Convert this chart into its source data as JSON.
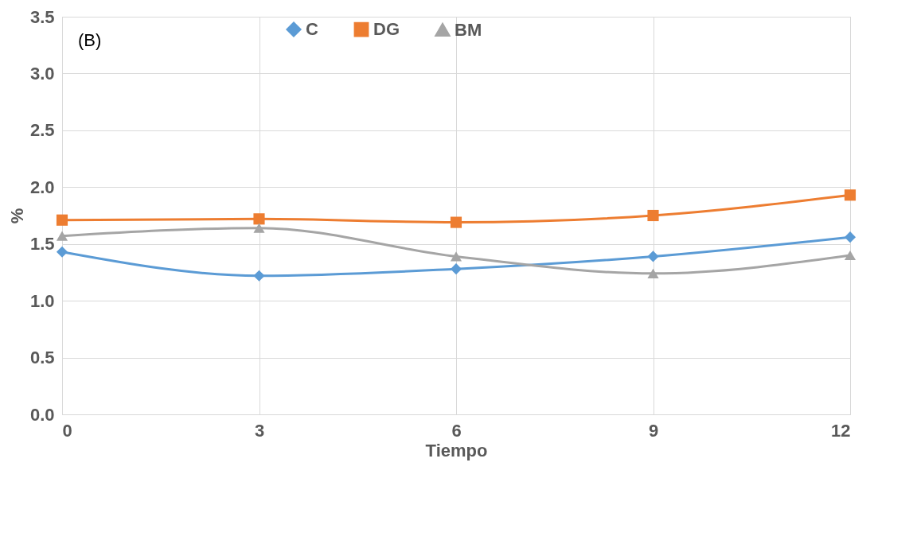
{
  "chart_data": {
    "type": "line",
    "xlabel": "Tiempo",
    "ylabel": "%",
    "annotations": [
      "(B)"
    ],
    "x": [
      0,
      3,
      6,
      9,
      12
    ],
    "series": [
      {
        "name": "C",
        "color": "#5b9bd5",
        "marker": "diamond",
        "values": [
          1.43,
          1.22,
          1.28,
          1.39,
          1.56
        ]
      },
      {
        "name": "DG",
        "color": "#ed7d31",
        "marker": "square",
        "values": [
          1.71,
          1.72,
          1.69,
          1.75,
          1.93
        ]
      },
      {
        "name": "BM",
        "color": "#a5a5a5",
        "marker": "triangle",
        "values": [
          1.57,
          1.64,
          1.39,
          1.24,
          1.4
        ]
      }
    ],
    "xlim": [
      0,
      12
    ],
    "xticks": [
      0,
      3,
      6,
      9,
      12
    ],
    "ylim": [
      0,
      3.5
    ],
    "yticks": [
      {
        "value": 0,
        "label": "0.0"
      },
      {
        "value": 0.5,
        "label": "0.5"
      },
      {
        "value": 1,
        "label": "1.0"
      },
      {
        "value": 1.5,
        "label": "1.5"
      },
      {
        "value": 2,
        "label": "2.0"
      },
      {
        "value": 2.5,
        "label": "2.5"
      },
      {
        "value": 3,
        "label": "3.0"
      },
      {
        "value": 3.5,
        "label": "3.5"
      }
    ],
    "grid": true,
    "legend": "top",
    "line_style": "solid"
  }
}
